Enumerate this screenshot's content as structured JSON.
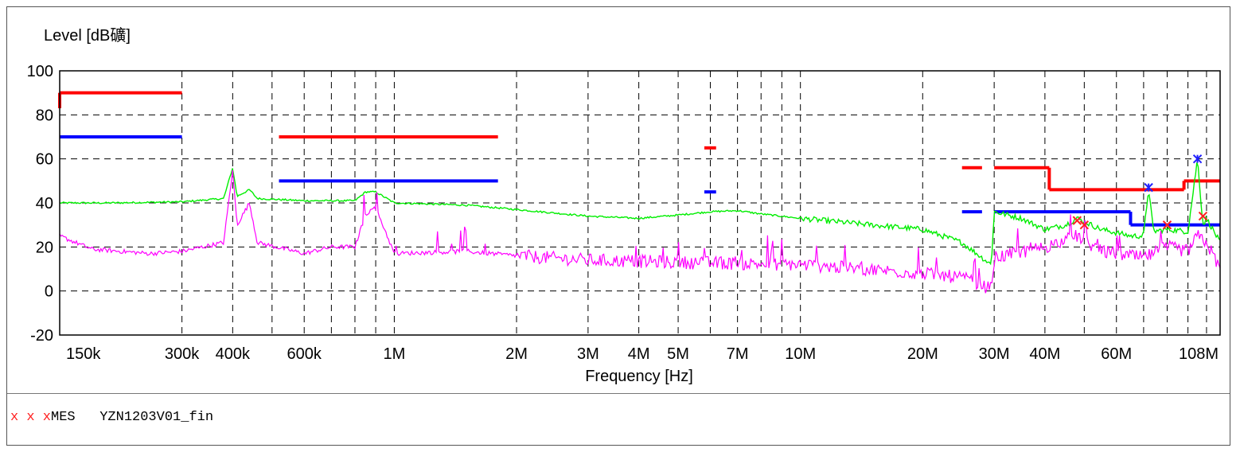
{
  "chart_data": {
    "type": "line",
    "ylabel": "Level [dB礦]",
    "xlabel": "Frequency [Hz]",
    "x_scale": "log",
    "xlim": [
      150000,
      108000000
    ],
    "ylim": [
      -20,
      100
    ],
    "y_ticks": [
      "100",
      "80",
      "60",
      "40",
      "20",
      "0",
      "-20"
    ],
    "x_tick_labels": [
      {
        "label": "150k",
        "value": 150000
      },
      {
        "label": "300k",
        "value": 300000
      },
      {
        "label": "400k",
        "value": 400000
      },
      {
        "label": "600k",
        "value": 600000
      },
      {
        "label": "1M",
        "value": 1000000
      },
      {
        "label": "2M",
        "value": 2000000
      },
      {
        "label": "3M",
        "value": 3000000
      },
      {
        "label": "4M",
        "value": 4000000
      },
      {
        "label": "5M",
        "value": 5000000
      },
      {
        "label": "7M",
        "value": 7000000
      },
      {
        "label": "10M",
        "value": 10000000
      },
      {
        "label": "20M",
        "value": 20000000
      },
      {
        "label": "30M",
        "value": 30000000
      },
      {
        "label": "40M",
        "value": 40000000
      },
      {
        "label": "60M",
        "value": 60000000
      },
      {
        "label": "108M",
        "value": 108000000
      }
    ],
    "x_grid": [
      150000,
      300000,
      400000,
      500000,
      600000,
      700000,
      800000,
      900000,
      1000000,
      2000000,
      3000000,
      4000000,
      5000000,
      6000000,
      7000000,
      8000000,
      9000000,
      10000000,
      20000000,
      30000000,
      40000000,
      50000000,
      60000000,
      70000000,
      80000000,
      90000000,
      100000000,
      108000000
    ],
    "grid": true,
    "colors": {
      "limit_qp": "#ff0000",
      "limit_av": "#0000ff",
      "peak": "#00ee00",
      "average": "#ff00ff",
      "marker": "#ff2020"
    },
    "limit_lines": [
      {
        "color": "#ff0000",
        "segments": [
          [
            [
              150000,
              90
            ],
            [
              300000,
              90
            ]
          ],
          [
            [
              520000,
              70
            ],
            [
              1800000,
              70
            ]
          ],
          [
            [
              5800000,
              65
            ],
            [
              6200000,
              65
            ]
          ],
          [
            [
              25000000,
              56
            ],
            [
              28000000,
              56
            ]
          ],
          [
            [
              30000000,
              56
            ],
            [
              41000000,
              56
            ]
          ],
          [
            [
              41000000,
              46
            ],
            [
              88000000,
              46
            ]
          ],
          [
            [
              88000000,
              50
            ],
            [
              108000000,
              50
            ]
          ]
        ]
      },
      {
        "color": "#0000ff",
        "segments": [
          [
            [
              150000,
              70
            ],
            [
              300000,
              70
            ]
          ],
          [
            [
              520000,
              50
            ],
            [
              1800000,
              50
            ]
          ],
          [
            [
              5800000,
              45
            ],
            [
              6200000,
              45
            ]
          ],
          [
            [
              25000000,
              36
            ],
            [
              28000000,
              36
            ]
          ],
          [
            [
              30000000,
              36
            ],
            [
              65000000,
              36
            ]
          ],
          [
            [
              65000000,
              30
            ],
            [
              108000000,
              30
            ]
          ]
        ]
      }
    ],
    "series": [
      {
        "color": "#00ee00",
        "points": [
          [
            150000,
            40
          ],
          [
            200000,
            40
          ],
          [
            300000,
            40.5
          ],
          [
            380000,
            42
          ],
          [
            400000,
            56
          ],
          [
            410000,
            43
          ],
          [
            440000,
            46
          ],
          [
            460000,
            42
          ],
          [
            600000,
            41
          ],
          [
            800000,
            41
          ],
          [
            850000,
            45
          ],
          [
            900000,
            45
          ],
          [
            1000000,
            40
          ],
          [
            1500000,
            39
          ],
          [
            2000000,
            37
          ],
          [
            3000000,
            34
          ],
          [
            4000000,
            33
          ],
          [
            5000000,
            34.5
          ],
          [
            6000000,
            36
          ],
          [
            7000000,
            36.5
          ],
          [
            8000000,
            35
          ],
          [
            10000000,
            33
          ],
          [
            15000000,
            30
          ],
          [
            20000000,
            28
          ],
          [
            25000000,
            22
          ],
          [
            29500000,
            12
          ],
          [
            30000000,
            36
          ],
          [
            35000000,
            33
          ],
          [
            40000000,
            28
          ],
          [
            45000000,
            30
          ],
          [
            48000000,
            33
          ],
          [
            55000000,
            28
          ],
          [
            65000000,
            25
          ],
          [
            70000000,
            25
          ],
          [
            72000000,
            47
          ],
          [
            74000000,
            27
          ],
          [
            80000000,
            28
          ],
          [
            90000000,
            27
          ],
          [
            95000000,
            60
          ],
          [
            98000000,
            30
          ],
          [
            100000000,
            33
          ],
          [
            108000000,
            22
          ]
        ]
      },
      {
        "color": "#ff00ff",
        "points": [
          [
            150000,
            25
          ],
          [
            180000,
            19
          ],
          [
            250000,
            17
          ],
          [
            300000,
            18
          ],
          [
            380000,
            22
          ],
          [
            400000,
            55
          ],
          [
            410000,
            30
          ],
          [
            440000,
            40
          ],
          [
            460000,
            22
          ],
          [
            600000,
            17
          ],
          [
            700000,
            20
          ],
          [
            800000,
            20
          ],
          [
            850000,
            35
          ],
          [
            900000,
            38
          ],
          [
            1000000,
            17
          ],
          [
            1500000,
            18
          ],
          [
            2000000,
            16
          ],
          [
            3000000,
            14
          ],
          [
            5000000,
            13
          ],
          [
            10000000,
            12
          ],
          [
            20000000,
            8
          ],
          [
            25000000,
            6
          ],
          [
            29500000,
            1
          ],
          [
            30000000,
            15
          ],
          [
            40000000,
            20
          ],
          [
            48000000,
            25
          ],
          [
            55000000,
            18
          ],
          [
            70000000,
            15
          ],
          [
            80000000,
            20
          ],
          [
            90000000,
            18
          ],
          [
            95000000,
            25
          ],
          [
            100000000,
            22
          ],
          [
            108000000,
            10
          ]
        ]
      }
    ],
    "markers": [
      {
        "x": 48000000,
        "y": 32,
        "color": "#ff2020",
        "symbol": "x"
      },
      {
        "x": 50000000,
        "y": 30,
        "color": "#ff2020",
        "symbol": "x"
      },
      {
        "x": 72000000,
        "y": 47,
        "color": "#2020ff",
        "symbol": "*"
      },
      {
        "x": 80000000,
        "y": 30,
        "color": "#ff2020",
        "symbol": "x"
      },
      {
        "x": 95000000,
        "y": 60,
        "color": "#2020ff",
        "symbol": "*"
      },
      {
        "x": 98000000,
        "y": 34,
        "color": "#ff2020",
        "symbol": "x"
      }
    ]
  },
  "legend": {
    "marker_symbols": "x x x",
    "label": "MES   YZN1203V01_fin"
  }
}
